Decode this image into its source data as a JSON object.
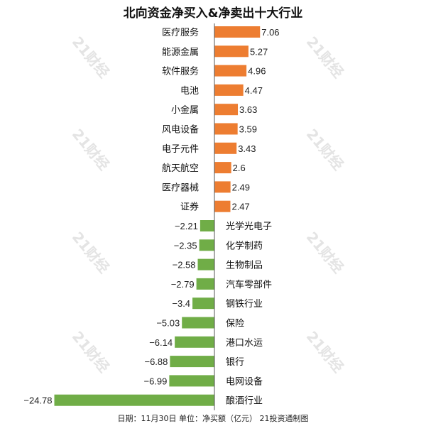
{
  "chart_data": {
    "type": "bar",
    "orientation": "horizontal",
    "title": "北向资金净买入&净卖出十大行业",
    "categories": [
      "医疗服务",
      "能源金属",
      "软件服务",
      "电池",
      "小金属",
      "风电设备",
      "电子元件",
      "航天航空",
      "医疗器械",
      "证券",
      "光学光电子",
      "化学制药",
      "生物制品",
      "汽车零部件",
      "钢铁行业",
      "保险",
      "港口水运",
      "银行",
      "电网设备",
      "酿酒行业"
    ],
    "values": [
      7.06,
      5.27,
      4.96,
      4.47,
      3.63,
      3.59,
      3.43,
      2.6,
      2.49,
      2.47,
      -2.21,
      -2.35,
      -2.58,
      -2.79,
      -3.4,
      -5.03,
      -6.14,
      -6.88,
      -6.99,
      -24.78
    ],
    "value_labels": [
      "7.06",
      "5.27",
      "4.96",
      "4.47",
      "3.63",
      "3.59",
      "3.43",
      "2.6",
      "2.49",
      "2.47",
      "−2.21",
      "−2.35",
      "−2.58",
      "−2.79",
      "−3.4",
      "−5.03",
      "−6.14",
      "−6.88",
      "−6.99",
      "−24.78"
    ],
    "colors": {
      "positive": "#ed7d31",
      "negative": "#70ad47"
    },
    "grid": false,
    "footer": "日期：11月30日 单位：净买额（亿元） 21投资通制图"
  },
  "watermark": "21财经"
}
